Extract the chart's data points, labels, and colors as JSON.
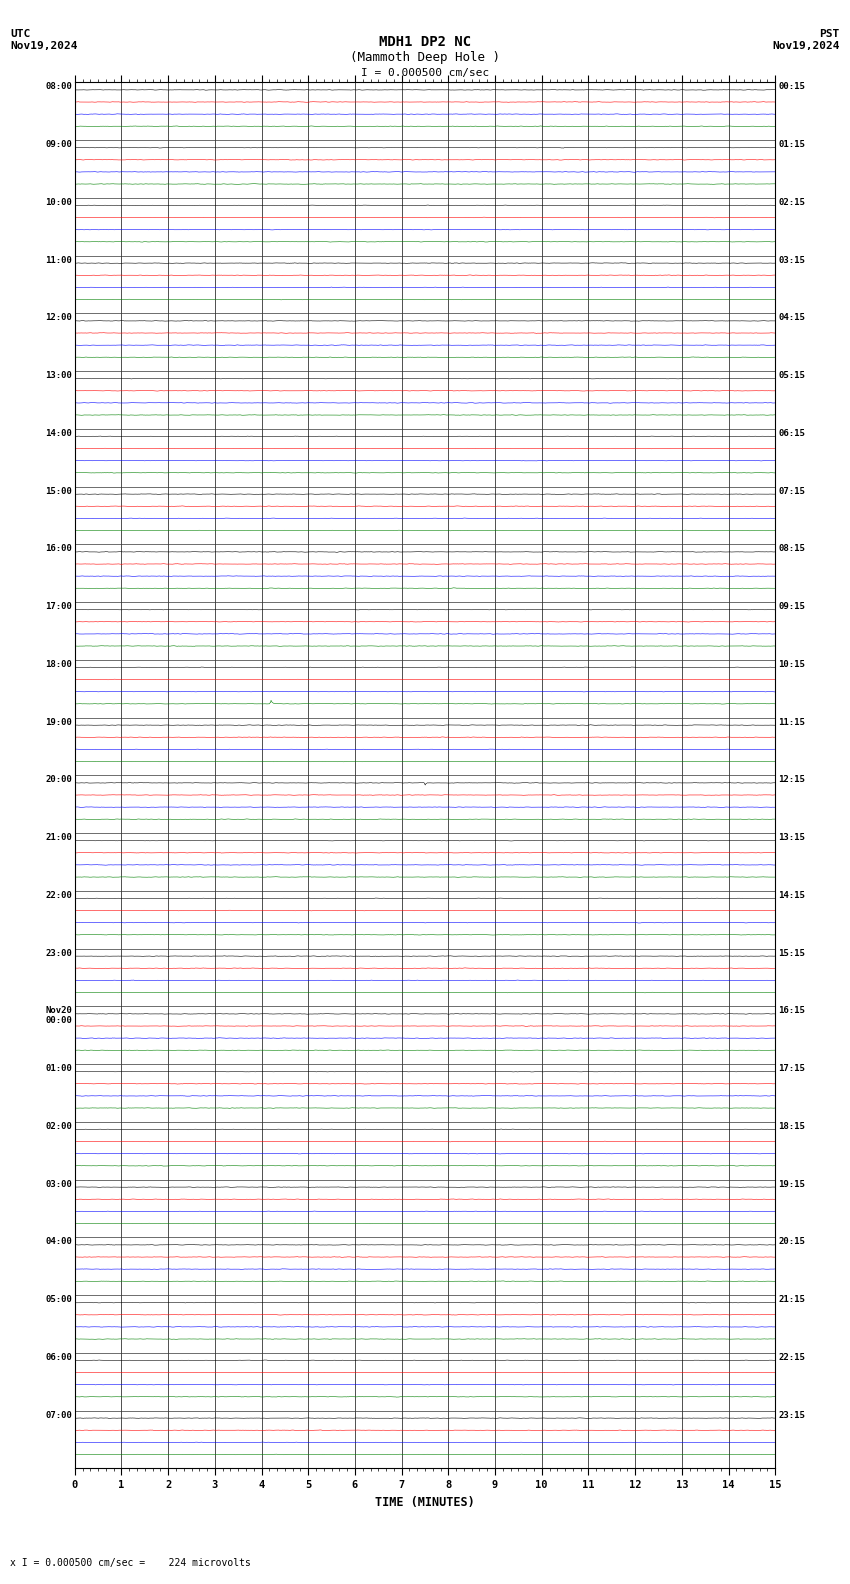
{
  "title_line1": "MDH1 DP2 NC",
  "title_line2": "(Mammoth Deep Hole )",
  "scale_label": "I = 0.000500 cm/sec",
  "utc_label": "UTC\nNov19,2024",
  "pst_label": "PST\nNov19,2024",
  "xlabel": "TIME (MINUTES)",
  "footer": "x I = 0.000500 cm/sec =    224 microvolts",
  "left_times": [
    "08:00",
    "09:00",
    "10:00",
    "11:00",
    "12:00",
    "13:00",
    "14:00",
    "15:00",
    "16:00",
    "17:00",
    "18:00",
    "19:00",
    "20:00",
    "21:00",
    "22:00",
    "23:00",
    "Nov20\n00:00",
    "01:00",
    "02:00",
    "03:00",
    "04:00",
    "05:00",
    "06:00",
    "07:00"
  ],
  "right_times": [
    "00:15",
    "01:15",
    "02:15",
    "03:15",
    "04:15",
    "05:15",
    "06:15",
    "07:15",
    "08:15",
    "09:15",
    "10:15",
    "11:15",
    "12:15",
    "13:15",
    "14:15",
    "15:15",
    "16:15",
    "17:15",
    "18:15",
    "19:15",
    "20:15",
    "21:15",
    "22:15",
    "23:15"
  ],
  "n_rows": 24,
  "minutes": 15,
  "bg_color": "#ffffff",
  "trace_colors": [
    "#000000",
    "#ff0000",
    "#0000ff",
    "#008000"
  ],
  "grid_color": "#000000",
  "special_green_row": 10,
  "special_green_col": 4.2,
  "special_black_row": 12,
  "special_black_col": 7.5,
  "special_blue_row": 12,
  "special_blue_col": 7.3
}
